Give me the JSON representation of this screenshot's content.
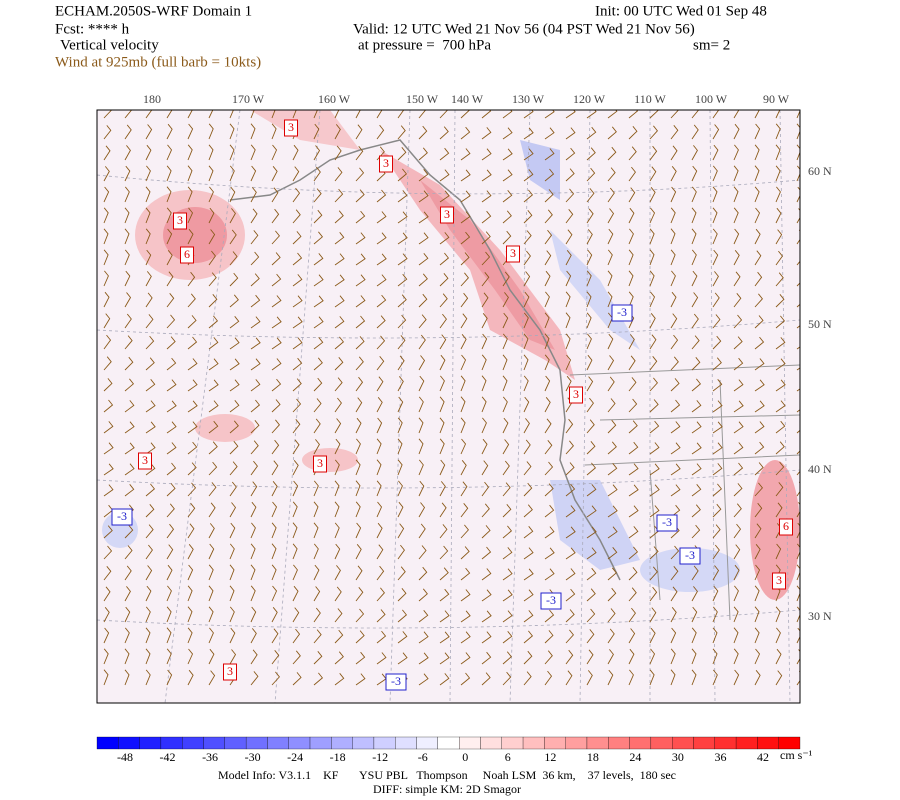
{
  "header": {
    "title": "ECHAM.2050S-WRF Domain 1",
    "forecast": "Fcst: **** h",
    "field": "Vertical velocity",
    "wind": "Wind at 925mb (full barb = 10kts)",
    "init": "Init: 00 UTC Wed 01 Sep 48",
    "valid": "Valid: 12 UTC Wed 21 Nov 56 (04 PST Wed 21 Nov 56)",
    "pressure": "at pressure =  700 hPa",
    "smooth": "sm= 2"
  },
  "map": {
    "longitudes": [
      "180",
      "170 W",
      "160 W",
      "150 W",
      "140 W",
      "130 W",
      "120 W",
      "110 W",
      "100 W",
      "90 W"
    ],
    "latitudes": [
      "60 N",
      "50 N",
      "40 N",
      "30 N"
    ],
    "positive_labels": [
      "3",
      "3",
      "3",
      "6",
      "3",
      "3",
      "3",
      "3",
      "3",
      "6",
      "3",
      "3"
    ],
    "negative_labels": [
      "-3",
      "-3",
      "-3",
      "-3",
      "-3",
      "-3"
    ]
  },
  "colorbar": {
    "labels": [
      "-48",
      "-42",
      "-36",
      "-30",
      "-24",
      "-18",
      "-12",
      "-6",
      "0",
      "6",
      "12",
      "18",
      "24",
      "30",
      "36",
      "42"
    ],
    "unit": "cm s⁻¹"
  },
  "footer": {
    "model_info": "Model Info: V3.1.1    KF       YSU PBL   Thompson     Noah LSM  36 km,    37 levels,  180 sec",
    "diffusion": "DIFF: simple KM: 2D Smagor"
  }
}
